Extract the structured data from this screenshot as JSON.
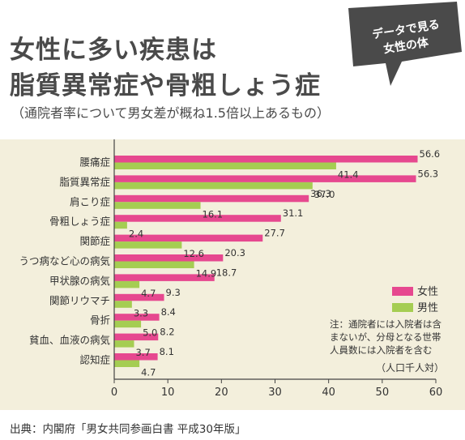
{
  "header": {
    "title_line1": "女性に多い疾患は",
    "title_line2": "脂質異常症や骨粗しょう症",
    "subtitle": "（通院者率について男女差が概ね1.5倍以上あるもの）"
  },
  "badge": {
    "line1": "データで見る",
    "line2": "女性の体"
  },
  "colors": {
    "background": "#f3efdc",
    "female": "#e6488f",
    "male": "#a5cd52",
    "badge": "#4a4a4a"
  },
  "chart_data": {
    "type": "bar",
    "orientation": "horizontal",
    "categories": [
      "腰痛症",
      "脂質異常症",
      "肩こり症",
      "骨粗しょう症",
      "関節症",
      "うつ病など心の病気",
      "甲状腺の病気",
      "関節リウマチ",
      "骨折",
      "貧血、血液の病気",
      "認知症"
    ],
    "series": [
      {
        "name": "女性",
        "values": [
          56.6,
          56.3,
          36.3,
          31.1,
          27.7,
          20.3,
          18.7,
          9.3,
          8.4,
          8.2,
          8.1
        ]
      },
      {
        "name": "男性",
        "values": [
          41.4,
          37.0,
          16.1,
          2.4,
          12.6,
          14.9,
          4.7,
          3.3,
          5.0,
          3.7,
          4.7
        ]
      }
    ],
    "value_labels": [
      [
        "56.6",
        "56.3",
        "36.3",
        "31.1",
        "27.7",
        "20.3",
        "18.7",
        "9.3",
        "8.4",
        "8.2",
        "8.1"
      ],
      [
        "41.4",
        "37.0",
        "16.1",
        "2.4",
        "12.6",
        "14.9",
        "4.7",
        "3.3",
        "5.0",
        "3.7",
        "4.7"
      ]
    ],
    "xlim": [
      0,
      60
    ],
    "xticks": [
      "0",
      "10",
      "20",
      "30",
      "40",
      "50",
      "60"
    ],
    "unit_label": "（人口千人対）",
    "note": [
      "注：通院者には入院者は含",
      "まないが、分母となる世帯",
      "人員数には入院者を含む"
    ],
    "legend_position": "right",
    "grid": false
  },
  "footer": {
    "source": "出典：内閣府「男女共同参画白書 平成30年版」"
  }
}
